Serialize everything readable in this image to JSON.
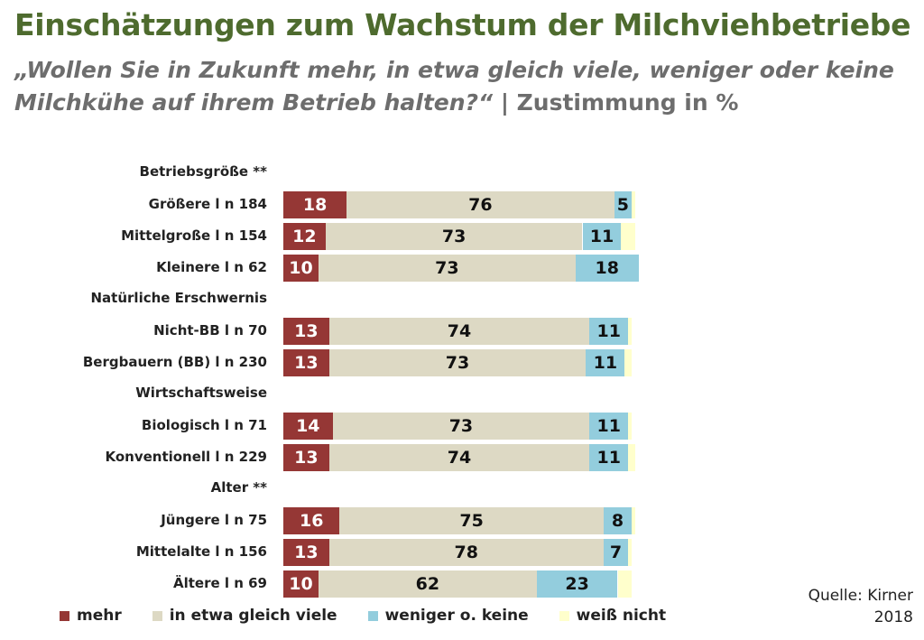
{
  "chart_data": {
    "type": "bar",
    "orientation": "horizontal",
    "stacked": true,
    "title": "Einschätzungen zum Wachstum der Milchviehbetriebe",
    "subtitle_question": "„Wollen Sie in Zukunft mehr, in etwa gleich viele, weniger oder keine Milchkühe auf ihrem Betrieb halten?“",
    "subtitle_suffix": " | Zustimmung in %",
    "xlim": [
      0,
      100
    ],
    "series": [
      {
        "name": "mehr",
        "color": "#953735",
        "text_color": "#ffffff"
      },
      {
        "name": "in etwa gleich viele",
        "color": "#ddd9c4",
        "text_color": "#111111"
      },
      {
        "name": "weniger o. keine",
        "color": "#93cddd",
        "text_color": "#111111"
      },
      {
        "name": "weiß nicht",
        "color": "#ffffcc",
        "text_color": "#111111"
      }
    ],
    "groups": [
      {
        "label": "Betriebsgröße **",
        "rows": [
          {
            "label": "Größere l n 184",
            "values": [
              18,
              76,
              5,
              1
            ],
            "labels": [
              "18",
              "76",
              "5",
              ""
            ]
          },
          {
            "label": "Mittelgroße l n 154",
            "values": [
              12,
              73,
              11,
              4
            ],
            "labels": [
              "12",
              "73",
              "11",
              ""
            ]
          },
          {
            "label": "Kleinere l n 62",
            "values": [
              10,
              73,
              18,
              0
            ],
            "labels": [
              "10",
              "73",
              "18",
              ""
            ]
          }
        ]
      },
      {
        "label": "Natürliche Erschwernis",
        "rows": [
          {
            "label": "Nicht-BB l n 70",
            "values": [
              13,
              74,
              11,
              1
            ],
            "labels": [
              "13",
              "74",
              "11",
              ""
            ]
          },
          {
            "label": "Bergbauern (BB) l n 230",
            "values": [
              13,
              73,
              11,
              2
            ],
            "labels": [
              "13",
              "73",
              "11",
              ""
            ]
          }
        ]
      },
      {
        "label": "Wirtschaftsweise",
        "rows": [
          {
            "label": "Biologisch l n 71",
            "values": [
              14,
              73,
              11,
              1
            ],
            "labels": [
              "14",
              "73",
              "11",
              ""
            ]
          },
          {
            "label": "Konventionell l n 229",
            "values": [
              13,
              74,
              11,
              2
            ],
            "labels": [
              "13",
              "74",
              "11",
              ""
            ]
          }
        ]
      },
      {
        "label": "Alter **",
        "rows": [
          {
            "label": "Jüngere l n 75",
            "values": [
              16,
              75,
              8,
              1
            ],
            "labels": [
              "16",
              "75",
              "8",
              ""
            ]
          },
          {
            "label": "Mittelalte l n 156",
            "values": [
              13,
              78,
              7,
              1
            ],
            "labels": [
              "13",
              "78",
              "7",
              ""
            ]
          },
          {
            "label": "Ältere l n 69",
            "values": [
              10,
              62,
              23,
              4
            ],
            "labels": [
              "10",
              "62",
              "23",
              ""
            ]
          }
        ]
      }
    ],
    "legend_position": "bottom",
    "source_line1": "Quelle: Kirner",
    "source_line2": "2018"
  }
}
